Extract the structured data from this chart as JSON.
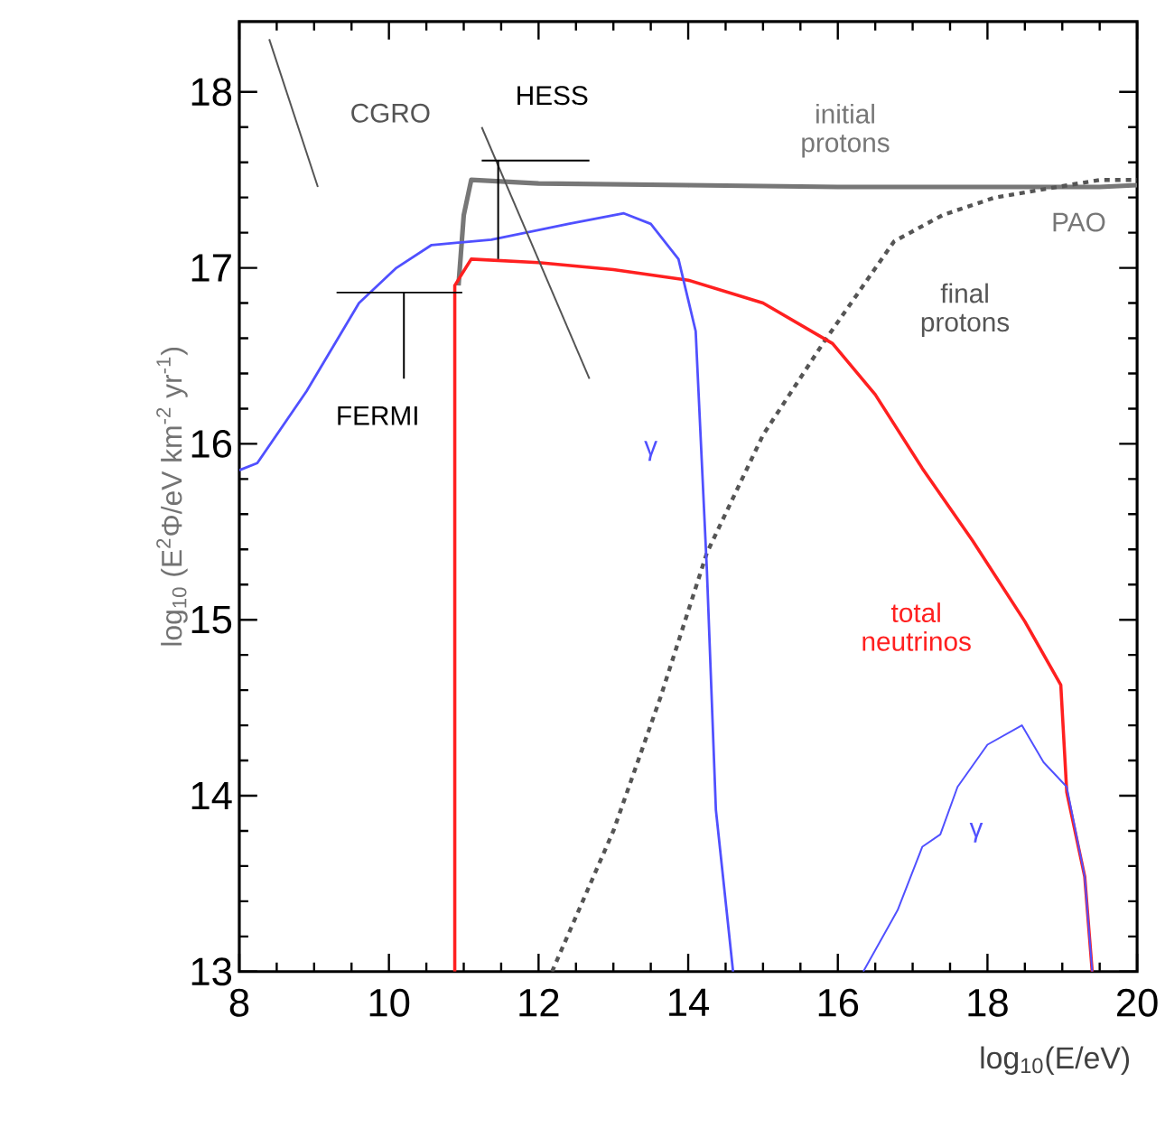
{
  "chart_data": {
    "type": "line",
    "xlabel": "log$_{10}$(E/eV)",
    "ylabel": "log$_{10}$ (E$^{2}$Φ/eV km$^{-2}$ yr$^{-1}$)",
    "xlim": [
      8,
      20
    ],
    "ylim": [
      13,
      18.4
    ],
    "xticks": [
      8,
      10,
      12,
      14,
      16,
      18,
      20
    ],
    "yticks": [
      13,
      14,
      15,
      16,
      17,
      18
    ],
    "series": [
      {
        "name": "initial protons",
        "color": "#777777",
        "line_style": "solid",
        "x": [
          10.93,
          11.0,
          11.1,
          12,
          14,
          16,
          18,
          19.5,
          20
        ],
        "values": [
          16.9,
          17.3,
          17.5,
          17.48,
          17.47,
          17.46,
          17.46,
          17.46,
          17.47
        ]
      },
      {
        "name": "final protons",
        "color": "#555555",
        "line_style": "dashed",
        "x": [
          12.18,
          13.0,
          13.63,
          14.25,
          15.0,
          15.8,
          16.75,
          17.4,
          18.1,
          19.5,
          20
        ],
        "values": [
          13.0,
          13.8,
          14.56,
          15.38,
          16.05,
          16.57,
          17.15,
          17.3,
          17.4,
          17.5,
          17.5
        ]
      },
      {
        "name": "total neutrinos",
        "color": "#ff2020",
        "line_style": "solid",
        "x": [
          10.88,
          10.88,
          11.1,
          12,
          13,
          14.0,
          15.0,
          15.93,
          16.5,
          17.13,
          17.8,
          18.5,
          18.98,
          19.06,
          19.3,
          19.4
        ],
        "values": [
          13.0,
          16.9,
          17.05,
          17.03,
          16.99,
          16.93,
          16.8,
          16.57,
          16.28,
          15.86,
          15.45,
          14.99,
          14.63,
          14.02,
          13.54,
          13.0
        ]
      },
      {
        "name": "γ",
        "color": "#5050ff",
        "line_style": "solid",
        "x": [
          8.0,
          8.24,
          8.9,
          9.6,
          10.1,
          10.57,
          11.37,
          12.4,
          13.14,
          13.5,
          13.87,
          14.1,
          14.25,
          14.37,
          14.6
        ],
        "values": [
          15.85,
          15.89,
          16.3,
          16.8,
          17.0,
          17.13,
          17.16,
          17.25,
          17.31,
          17.25,
          17.05,
          16.64,
          15.28,
          13.92,
          13.0
        ]
      },
      {
        "name": "γ",
        "color": "#5050ff",
        "line_style": "solid",
        "x": [
          16.34,
          16.8,
          17.13,
          17.37,
          17.6,
          18.0,
          18.46,
          18.75,
          19.06,
          19.3,
          19.4
        ],
        "values": [
          13.0,
          13.35,
          13.71,
          13.78,
          14.05,
          14.29,
          14.4,
          14.19,
          14.05,
          13.54,
          13.0
        ]
      },
      {
        "color": "#555555",
        "line_style": "solid",
        "x": [
          8.4,
          9.05
        ],
        "values": [
          18.3,
          17.46
        ]
      },
      {
        "color": "#555555",
        "line_style": "solid",
        "x": [
          11.24,
          12.68
        ],
        "values": [
          17.8,
          16.37
        ]
      },
      {
        "color": "#000000",
        "line_style": "solid",
        "x": [
          9.3,
          10.98,
          10.6,
          10.2,
          10.2
        ],
        "values": [
          16.86,
          16.86,
          null,
          16.86,
          16.37
        ]
      },
      {
        "color": "#000000",
        "line_style": "solid",
        "x": [
          11.24,
          12.68,
          12.0,
          11.46,
          11.46
        ],
        "values": [
          17.61,
          17.61,
          null,
          17.61,
          17.05
        ]
      }
    ],
    "annotations": [
      "CGRO",
      "HESS",
      "PAO",
      "FERMI"
    ]
  }
}
